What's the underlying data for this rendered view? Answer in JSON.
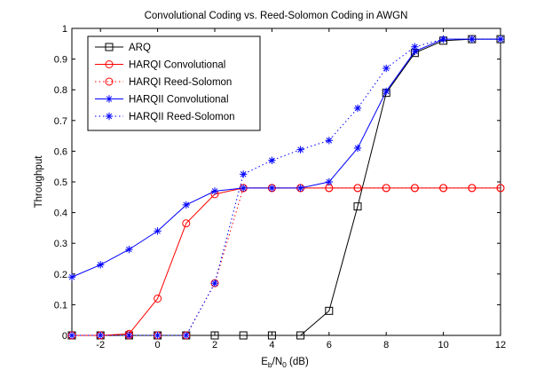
{
  "chart_data": {
    "type": "line",
    "title": "Convolutional Coding vs. Reed-Solomon Coding in AWGN",
    "xlabel": {
      "main": "E",
      "sub1": "b",
      "mid": "/N",
      "sub2": "0",
      "tail": " (dB)"
    },
    "ylabel": "Throughput",
    "xlim": [
      -3,
      12
    ],
    "ylim": [
      0,
      1
    ],
    "xticks": [
      -2,
      0,
      2,
      4,
      6,
      8,
      10,
      12
    ],
    "yticks": [
      0,
      0.1,
      0.2,
      0.3,
      0.4,
      0.5,
      0.6,
      0.7,
      0.8,
      0.9,
      1
    ],
    "ytick_labels": [
      "0",
      "0.1",
      "0.2",
      "0.3",
      "0.4",
      "0.5",
      "0.6",
      "0.7",
      "0.8",
      "0.9",
      "1"
    ],
    "grid": false,
    "legend_position": "top-left",
    "series": [
      {
        "name": "ARQ",
        "color": "#000000",
        "line": "solid",
        "marker": "square",
        "x": [
          -3,
          -2,
          -1,
          0,
          1,
          2,
          3,
          4,
          5,
          6,
          7,
          8,
          9,
          10,
          11,
          12
        ],
        "y": [
          0,
          0,
          0,
          0,
          0,
          0,
          0,
          0,
          0,
          0.08,
          0.42,
          0.79,
          0.92,
          0.96,
          0.965,
          0.965
        ]
      },
      {
        "name": "HARQI Convolutional",
        "color": "#ff0000",
        "line": "solid",
        "marker": "circle",
        "x": [
          -3,
          -2,
          -1,
          0,
          1,
          2,
          3,
          4,
          5,
          6,
          7,
          8,
          9,
          10,
          11,
          12
        ],
        "y": [
          0,
          0,
          0.005,
          0.12,
          0.365,
          0.46,
          0.48,
          0.48,
          0.48,
          0.48,
          0.48,
          0.48,
          0.48,
          0.48,
          0.48,
          0.48
        ]
      },
      {
        "name": "HARQI Reed-Solomon",
        "color": "#ff0000",
        "line": "dotted",
        "marker": "circle",
        "x": [
          -3,
          -2,
          -1,
          0,
          1,
          2,
          3,
          4,
          5,
          6,
          7,
          8,
          9,
          10,
          11,
          12
        ],
        "y": [
          0,
          0,
          0,
          0,
          0,
          0.17,
          0.48,
          0.48,
          0.48,
          0.48,
          0.48,
          0.48,
          0.48,
          0.48,
          0.48,
          0.48
        ]
      },
      {
        "name": "HARQII Convolutional",
        "color": "#0000ff",
        "line": "solid",
        "marker": "star",
        "x": [
          -3,
          -2,
          -1,
          0,
          1,
          2,
          3,
          4,
          5,
          6,
          7,
          8,
          9,
          10,
          11,
          12
        ],
        "y": [
          0.19,
          0.23,
          0.28,
          0.34,
          0.425,
          0.47,
          0.48,
          0.48,
          0.48,
          0.5,
          0.61,
          0.795,
          0.925,
          0.965,
          0.965,
          0.965
        ]
      },
      {
        "name": "HARQII Reed-Solomon",
        "color": "#0000ff",
        "line": "dotted",
        "marker": "star",
        "x": [
          -3,
          -2,
          -1,
          0,
          1,
          2,
          3,
          4,
          5,
          6,
          7,
          8,
          9,
          10,
          11,
          12
        ],
        "y": [
          0,
          0,
          0,
          0,
          0,
          0.17,
          0.525,
          0.57,
          0.605,
          0.635,
          0.74,
          0.87,
          0.94,
          0.965,
          0.965,
          0.965
        ]
      }
    ]
  }
}
